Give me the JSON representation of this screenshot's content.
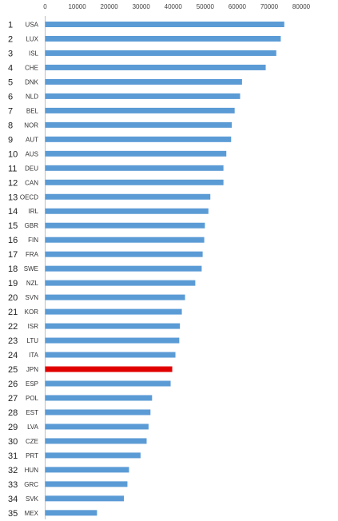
{
  "chart_data": {
    "type": "bar",
    "orientation": "horizontal",
    "title": "",
    "xlabel": "",
    "ylabel": "",
    "xlim": [
      0,
      80000
    ],
    "x_ticks": [
      "0",
      "10000",
      "20000",
      "30000",
      "40000",
      "50000",
      "60000",
      "70000",
      "80000"
    ],
    "grid": false,
    "ranks": [
      "1",
      "2",
      "3",
      "4",
      "5",
      "6",
      "7",
      "8",
      "9",
      "10",
      "11",
      "12",
      "13",
      "14",
      "15",
      "16",
      "17",
      "18",
      "19",
      "20",
      "21",
      "22",
      "23",
      "24",
      "25",
      "26",
      "27",
      "28",
      "29",
      "30",
      "31",
      "32",
      "33",
      "34",
      "35"
    ],
    "categories": [
      "USA",
      "LUX",
      "ISL",
      "CHE",
      "DNK",
      "NLD",
      "BEL",
      "NOR",
      "AUT",
      "AUS",
      "DEU",
      "CAN",
      "OECD",
      "IRL",
      "GBR",
      "FIN",
      "FRA",
      "SWE",
      "NZL",
      "SVN",
      "KOR",
      "ISR",
      "LTU",
      "ITA",
      "JPN",
      "ESP",
      "POL",
      "EST",
      "LVA",
      "CZE",
      "PRT",
      "HUN",
      "GRC",
      "SVK",
      "MEX"
    ],
    "values": [
      74700,
      73600,
      72200,
      68900,
      61500,
      60900,
      59200,
      58300,
      58100,
      56600,
      55700,
      55700,
      51600,
      51000,
      49900,
      49700,
      49200,
      48900,
      46900,
      43700,
      42700,
      42100,
      41900,
      40700,
      39700,
      39200,
      33400,
      32900,
      32300,
      31700,
      29800,
      26200,
      25700,
      24600,
      16200
    ],
    "colors": {
      "default": "#5b9bd5",
      "highlight": "#e00000"
    },
    "highlight_category": "JPN"
  }
}
